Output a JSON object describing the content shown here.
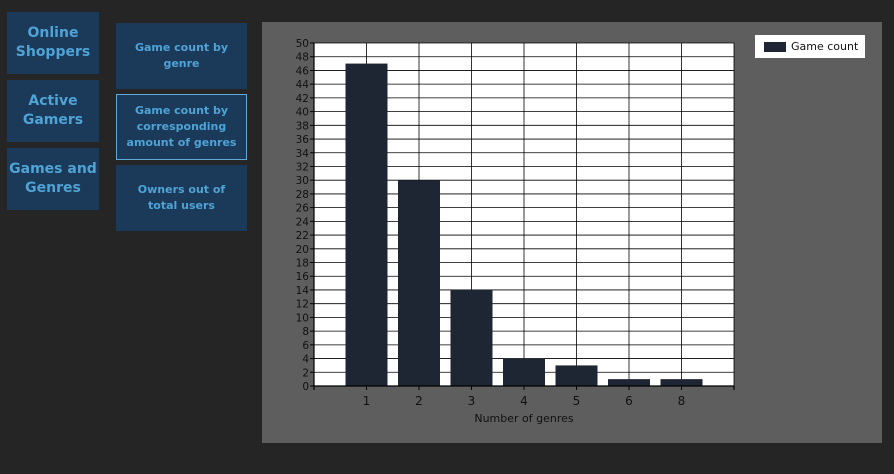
{
  "nav": {
    "main": [
      {
        "label_1": "Online",
        "label_2": "Shoppers"
      },
      {
        "label_1": "Active",
        "label_2": "Gamers"
      },
      {
        "label_1": "Games and",
        "label_2": "Genres"
      }
    ],
    "sub": [
      {
        "label": "Game count by genre"
      },
      {
        "label": "Game count by corresponding amount of genres"
      },
      {
        "label": "Owners out of total users"
      }
    ]
  },
  "colors": {
    "bar": "#1f2633",
    "panel": "#5e5e5e",
    "nav_bg": "#1b3a5a",
    "nav_text": "#4fa3d6"
  },
  "chart_data": {
    "type": "bar",
    "categories": [
      "1",
      "2",
      "3",
      "4",
      "5",
      "6",
      "8"
    ],
    "series": [
      {
        "name": "Game count",
        "values": [
          47,
          30,
          14,
          4,
          3,
          1,
          1
        ]
      }
    ],
    "xlabel": "Number of genres",
    "ylabel": "",
    "ylim": [
      0,
      50
    ],
    "ytick_step": 2,
    "grid": true,
    "legend": "top-right"
  }
}
